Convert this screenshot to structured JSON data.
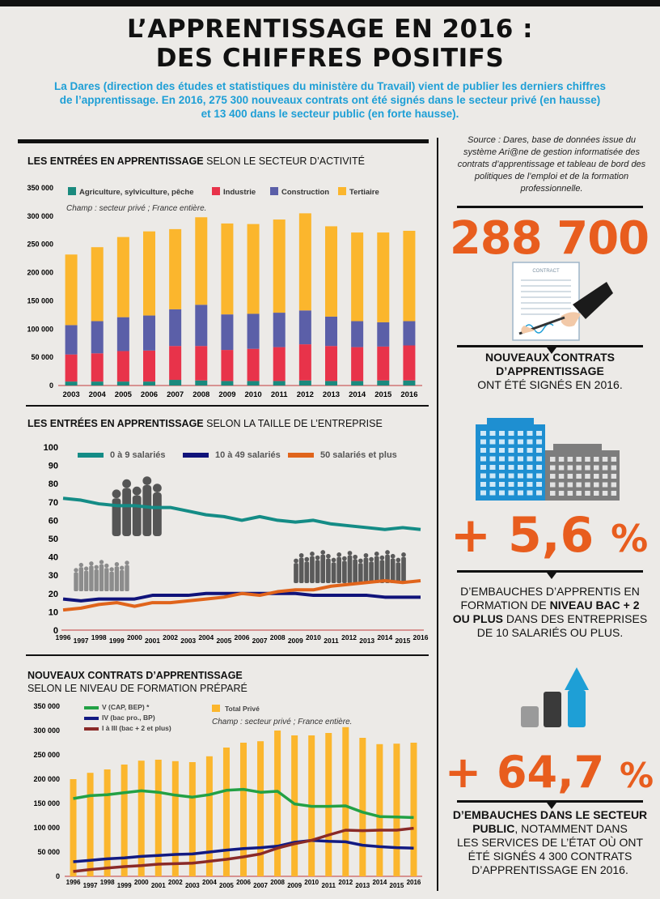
{
  "header": {
    "title_line1": "L’APPRENTISSAGE EN 2016 :",
    "title_line2": "DES CHIFFRES POSITIFS",
    "intro_line1": "La Dares (direction des études et statistiques du ministère du Travail) vient de publier les derniers chiffres",
    "intro_line2": "de l’apprentissage. En 2016, 275 300 nouveaux contrats ont été signés dans le secteur privé (en hausse)",
    "intro_line3": "et 13 400 dans le secteur public (en forte hausse)."
  },
  "source": {
    "text": "Source : Dares, base de données issue du système Ari@ne de gestion informatisée des contrats d’apprentissage et tableau de bord des politiques de l’emploi et de la formation professionnelle."
  },
  "stats": {
    "stat1_value": "288 700",
    "stat1_bold1": "NOUVEAUX CONTRATS",
    "stat1_bold2": "D’APPRENTISSAGE",
    "stat1_rest": "ONT ÉTÉ SIGNÉS EN 2016.",
    "stat1_icon": "contract-signing-icon",
    "stat2_value": "+ 5,6",
    "stat2_line1": "D’EMBAUCHES D’APPRENTIS EN",
    "stat2_line2a": "FORMATION DE ",
    "stat2_line2b": "NIVEAU BAC + 2",
    "stat2_line3a": "OU PLUS",
    "stat2_line3b": " DANS DES ENTREPRISES",
    "stat2_line4": "DE 10 SALARIÉS OU PLUS.",
    "stat2_icon": "buildings-icon",
    "stat3_value": "+ 64,7",
    "stat3_bold1": "D’EMBAUCHES DANS LE SECTEUR",
    "stat3_bold2": "PUBLIC",
    "stat3_rest1": ", NOTAMMENT DANS",
    "stat3_rest2": "LES SERVICES DE L’ÉTAT OÙ ONT",
    "stat3_rest3": "ÉTÉ SIGNÉS 4 300 CONTRATS",
    "stat3_rest4": "D’APPRENTISSAGE EN 2016.",
    "stat3_icon": "growth-bars-arrow-icon",
    "percent_symbol": "%"
  },
  "chart_data": [
    {
      "type": "bar",
      "stacked": true,
      "heading_bold": "LES ENTRÉES EN APPRENTISSAGE",
      "heading_rest": " SELON LE SECTEUR D’ACTIVITÉ",
      "note": "Champ : secteur privé ; France entière.",
      "categories": [
        "2003",
        "2004",
        "2005",
        "2006",
        "2007",
        "2008",
        "2009",
        "2010",
        "2011",
        "2012",
        "2013",
        "2014",
        "2015",
        "2016"
      ],
      "ylim": [
        0,
        350000
      ],
      "yticks": [
        "0",
        "50 000",
        "100 000",
        "150 000",
        "200 000",
        "250 000",
        "300 000",
        "350 000"
      ],
      "legend_position": "top",
      "series": [
        {
          "name": "Agriculture, sylviculture, pêche",
          "color": "#1a8a7e",
          "values": [
            7000,
            7000,
            7000,
            7000,
            10000,
            9000,
            8000,
            8000,
            8000,
            9000,
            8000,
            8000,
            9000,
            9000
          ]
        },
        {
          "name": "Industrie",
          "color": "#e8334a",
          "values": [
            48000,
            50000,
            54000,
            55000,
            60000,
            61000,
            55000,
            57000,
            60000,
            64000,
            62000,
            60000,
            60000,
            62000
          ]
        },
        {
          "name": "Construction",
          "color": "#5b5fa8",
          "values": [
            52000,
            57000,
            60000,
            62000,
            65000,
            73000,
            63000,
            62000,
            61000,
            60000,
            52000,
            46000,
            43000,
            43000
          ]
        },
        {
          "name": "Tertiaire",
          "color": "#fbb62d",
          "values": [
            125000,
            131000,
            142000,
            149000,
            142000,
            155000,
            161000,
            159000,
            165000,
            172000,
            160000,
            157000,
            159000,
            160000
          ]
        }
      ]
    },
    {
      "type": "line",
      "heading_bold": "LES ENTRÉES EN APPRENTISSAGE",
      "heading_rest": " SELON LA TAILLE DE L’ENTREPRISE",
      "x": [
        "1996",
        "1997",
        "1998",
        "1999",
        "2000",
        "2001",
        "2002",
        "2003",
        "2004",
        "2005",
        "2006",
        "2007",
        "2008",
        "2009",
        "2010",
        "2011",
        "2012",
        "2013",
        "2014",
        "2015",
        "2016"
      ],
      "ylim": [
        0,
        100
      ],
      "yticks": [
        "0",
        "10",
        "20",
        "30",
        "40",
        "50",
        "60",
        "70",
        "80",
        "90",
        "100"
      ],
      "legend_position": "top",
      "series": [
        {
          "name": "0 à 9 salariés",
          "color": "#148c86",
          "values": [
            72,
            71,
            69,
            68,
            68,
            67,
            67,
            65,
            63,
            62,
            60,
            62,
            60,
            59,
            60,
            58,
            57,
            56,
            55,
            56,
            55
          ]
        },
        {
          "name": "10 à 49 salariés",
          "color": "#10137a",
          "values": [
            17,
            16,
            17,
            17,
            17,
            19,
            19,
            19,
            20,
            20,
            20,
            20,
            20,
            20,
            19,
            19,
            19,
            19,
            18,
            18,
            18
          ]
        },
        {
          "name": "50 salariés et plus",
          "color": "#e0641b",
          "values": [
            11,
            12,
            14,
            15,
            13,
            15,
            15,
            16,
            17,
            18,
            20,
            19,
            21,
            22,
            22,
            24,
            25,
            26,
            27,
            26,
            27
          ]
        }
      ]
    },
    {
      "type": "bar",
      "heading_bold": "NOUVEAUX CONTRATS D’APPRENTISSAGE",
      "heading_rest": "SELON LE NIVEAU DE FORMATION PRÉPARÉ",
      "note": "Champ : secteur privé ; France entière.",
      "x": [
        "1996",
        "1997",
        "1998",
        "1999",
        "2000",
        "2001",
        "2002",
        "2003",
        "2004",
        "2005",
        "2006",
        "2007",
        "2008",
        "2009",
        "2010",
        "2011",
        "2012",
        "2013",
        "2014",
        "2015",
        "2016"
      ],
      "ylim": [
        0,
        350000
      ],
      "yticks": [
        "0",
        "50 000",
        "100 000",
        "150 000",
        "200 000",
        "250 000",
        "300 000",
        "350 000"
      ],
      "legend_position": "top-left",
      "bars": {
        "name": "Total Privé",
        "color": "#fbb62d",
        "values": [
          200000,
          213000,
          220000,
          230000,
          238000,
          240000,
          237000,
          235000,
          247000,
          265000,
          275000,
          278000,
          300000,
          290000,
          290000,
          295000,
          307000,
          285000,
          272000,
          273000,
          275000
        ]
      },
      "series": [
        {
          "name": "V (CAP, BEP) *",
          "color": "#22a145",
          "values": [
            160000,
            166000,
            168000,
            172000,
            176000,
            173000,
            167000,
            163000,
            168000,
            177000,
            179000,
            173000,
            175000,
            149000,
            144000,
            144000,
            145000,
            132000,
            123000,
            122000,
            121000
          ]
        },
        {
          "name": "IV (bac pro., BP)",
          "color": "#121a82",
          "values": [
            30000,
            33000,
            36000,
            38000,
            41000,
            43000,
            45000,
            46000,
            50000,
            54000,
            57000,
            59000,
            62000,
            70000,
            74000,
            72000,
            71000,
            64000,
            61000,
            59000,
            58000
          ]
        },
        {
          "name": "I à III (bac + 2 et plus)",
          "color": "#8a2a28",
          "values": [
            10000,
            14000,
            17000,
            20000,
            22000,
            25000,
            26000,
            27000,
            31000,
            35000,
            40000,
            46000,
            58000,
            67000,
            74000,
            85000,
            95000,
            94000,
            95000,
            95000,
            99000
          ]
        }
      ]
    }
  ]
}
